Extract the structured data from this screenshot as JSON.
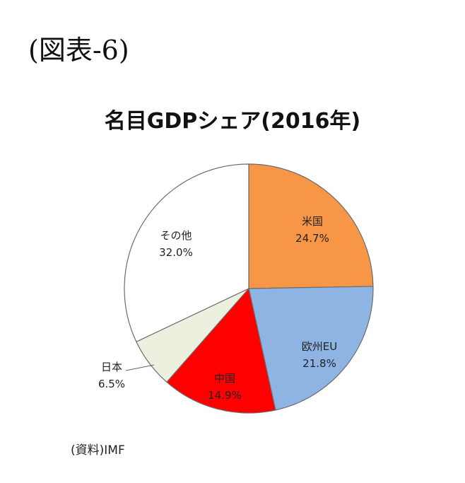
{
  "figure_label": "(図表-6)",
  "source_note": "(資料)IMF",
  "chart_data": {
    "type": "pie",
    "title": "名目GDPシェア(2016年)",
    "start_angle_deg": 0,
    "direction": "clockwise",
    "slices": [
      {
        "name": "米国",
        "value": 24.7,
        "label": "24.7%",
        "color": "#F79646"
      },
      {
        "name": "欧州EU",
        "value": 21.8,
        "label": "21.8%",
        "color": "#8DB4E2"
      },
      {
        "name": "中国",
        "value": 14.9,
        "label": "14.9%",
        "color": "#FF0000"
      },
      {
        "name": "日本",
        "value": 6.5,
        "label": "6.5%",
        "color": "#EBF1DE"
      },
      {
        "name": "その他",
        "value": 32.0,
        "label": "32.0%",
        "color": "#FFFFFF"
      }
    ]
  }
}
